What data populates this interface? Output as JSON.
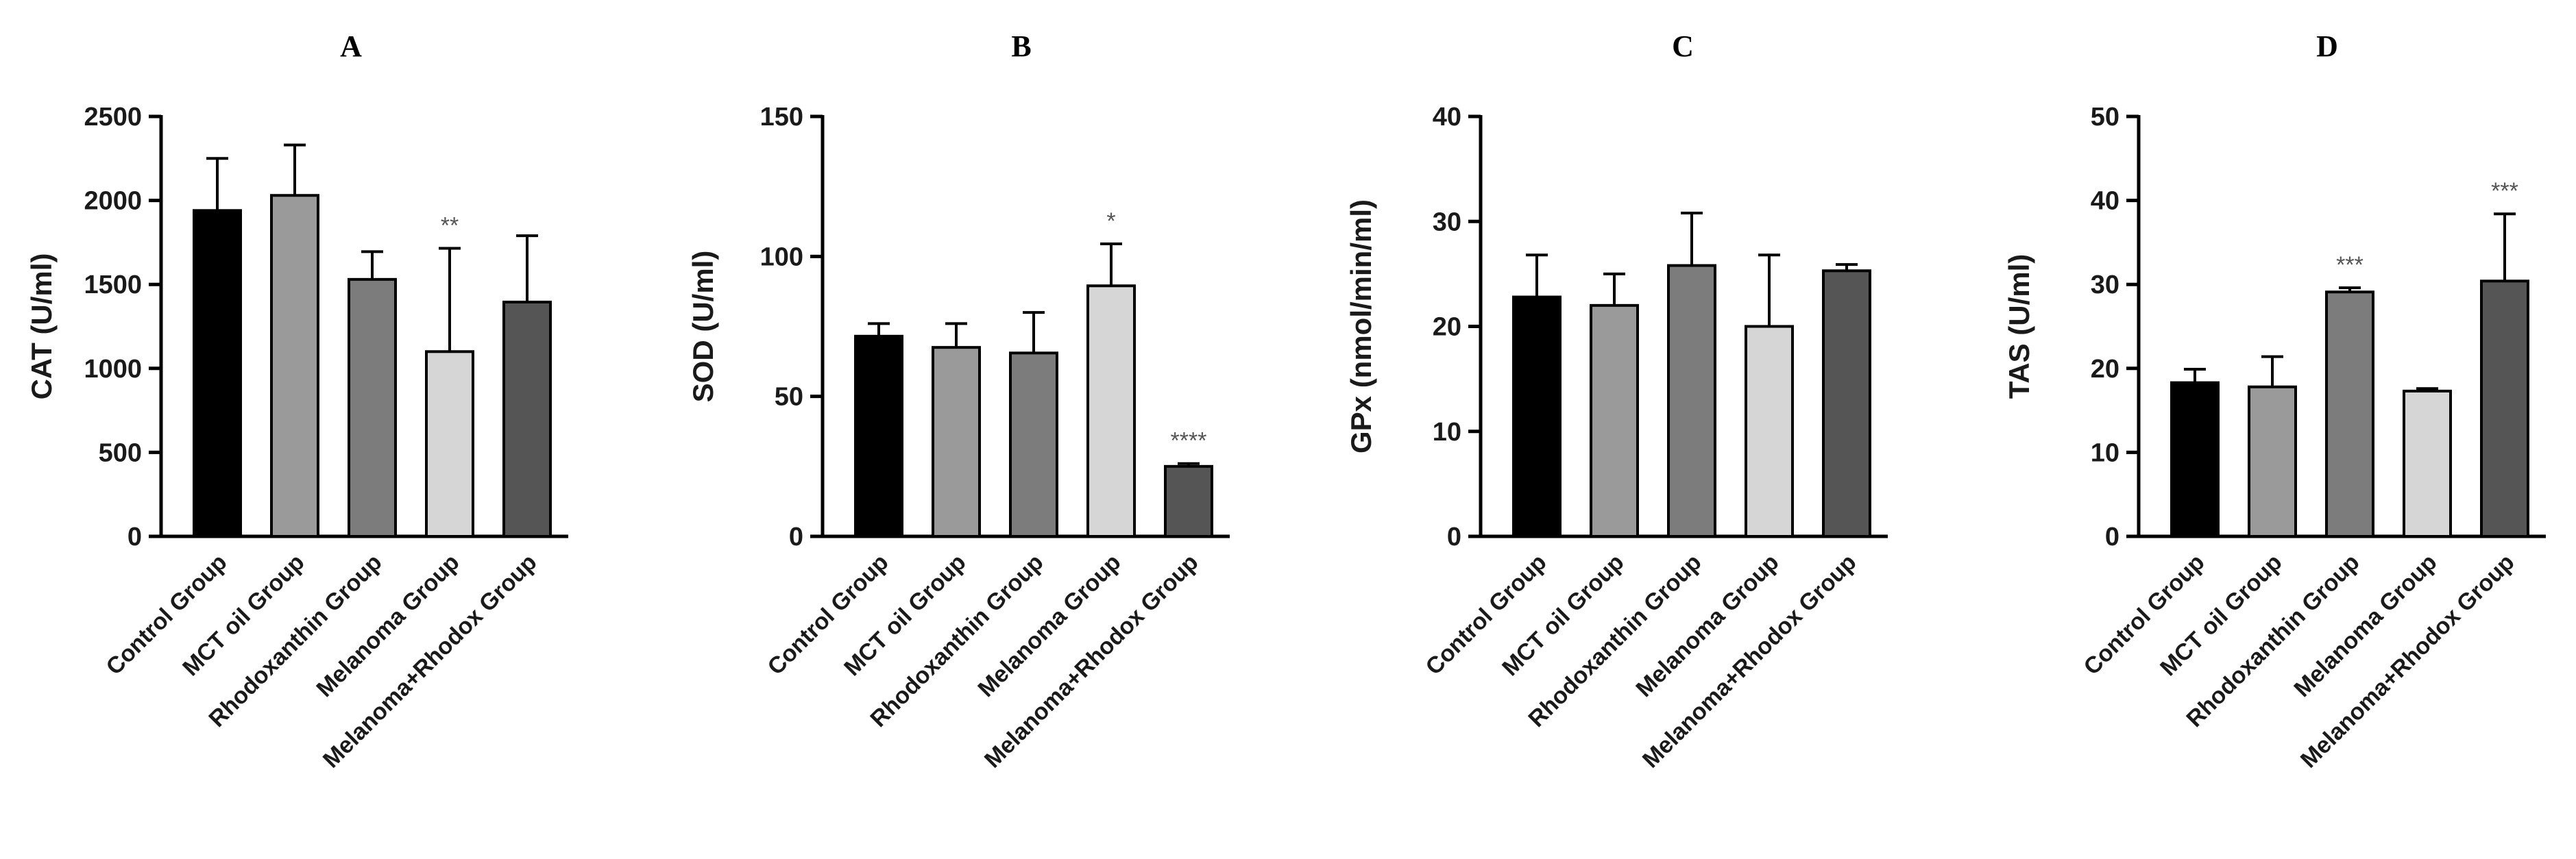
{
  "categories": [
    "Control Group",
    "MCT oil Group",
    "Rhodoxanthin Group",
    "Melanoma Group",
    "Melanoma+Rhodox Group"
  ],
  "colors": {
    "bars": [
      "#000000",
      "#9a9a9a",
      "#7c7c7c",
      "#d6d6d6",
      "#555555"
    ],
    "axis": "#000000"
  },
  "chart_data": [
    {
      "type": "bar",
      "title": "A",
      "ylabel": "CAT (U/ml)",
      "ylim": [
        0,
        2500
      ],
      "yticks": [
        0,
        500,
        1000,
        1500,
        2000,
        2500
      ],
      "categories": [
        "Control Group",
        "MCT oil Group",
        "Rhodoxanthin Group",
        "Melanoma Group",
        "Melanoma+Rhodox Group"
      ],
      "values": [
        1940,
        2030,
        1530,
        1100,
        1395
      ],
      "errors": [
        310,
        300,
        165,
        615,
        395
      ],
      "significance": [
        "",
        "",
        "",
        "**",
        ""
      ]
    },
    {
      "type": "bar",
      "title": "B",
      "ylabel": "SOD (U/ml)",
      "ylim": [
        0,
        150
      ],
      "yticks": [
        0,
        50,
        100,
        150
      ],
      "categories": [
        "Control Group",
        "MCT oil Group",
        "Rhodoxanthin Group",
        "Melanoma Group",
        "Melanoma+Rhodox Group"
      ],
      "values": [
        71.5,
        67.5,
        65.5,
        89.5,
        25
      ],
      "errors": [
        4.5,
        8.5,
        14.5,
        15,
        1
      ],
      "significance": [
        "",
        "",
        "",
        "*",
        "****"
      ]
    },
    {
      "type": "bar",
      "title": "C",
      "ylabel": "GPx (nmol/min/ml)",
      "ylim": [
        0,
        40
      ],
      "yticks": [
        0,
        10,
        20,
        30,
        40
      ],
      "categories": [
        "Control Group",
        "MCT oil Group",
        "Rhodoxanthin Group",
        "Melanoma Group",
        "Melanoma+Rhodox Group"
      ],
      "values": [
        22.8,
        22.0,
        25.8,
        20.0,
        25.3
      ],
      "errors": [
        4.0,
        3.0,
        5.0,
        6.8,
        0.6
      ],
      "significance": [
        "",
        "",
        "",
        "",
        ""
      ]
    },
    {
      "type": "bar",
      "title": "D",
      "ylabel": "TAS (U/ml)",
      "ylim": [
        0,
        50
      ],
      "yticks": [
        0,
        10,
        20,
        30,
        40,
        50
      ],
      "categories": [
        "Control Group",
        "MCT oil Group",
        "Rhodoxanthin Group",
        "Melanoma Group",
        "Melanoma+Rhodox Group"
      ],
      "values": [
        18.3,
        17.8,
        29.1,
        17.3,
        30.4
      ],
      "errors": [
        1.6,
        3.6,
        0.5,
        0.3,
        8.0
      ],
      "significance": [
        "",
        "",
        "***",
        "",
        "***"
      ]
    }
  ]
}
